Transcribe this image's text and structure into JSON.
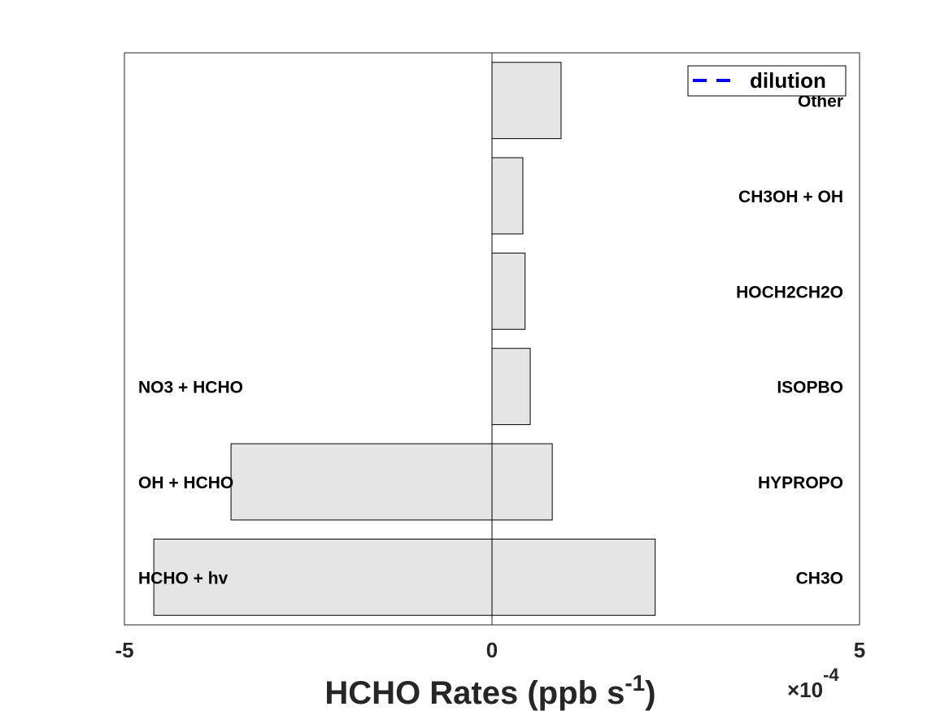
{
  "chart_data": {
    "type": "bar",
    "orientation": "horizontal",
    "xlabel": "HCHO Rates (ppb s",
    "xlabel_exponent": "-1",
    "xlabel_suffix": ")",
    "x_multiplier_label": "×10",
    "x_multiplier_exponent": "-4",
    "xlim": [
      -5,
      5
    ],
    "xticks": [
      -5,
      0,
      5
    ],
    "scale": 0.0001,
    "grid": false,
    "bar_color": "#e5e5e5",
    "edge_color": "#000000",
    "production": {
      "labels": [
        "CH3O",
        "HYPROPO",
        "ISOPBO",
        "HOCH2CH2O",
        "CH3OH + OH",
        "Other"
      ],
      "values": [
        2.22,
        0.82,
        0.52,
        0.45,
        0.42,
        0.94
      ]
    },
    "loss": {
      "labels": [
        "HCHO + hv",
        "OH + HCHO",
        "NO3 + HCHO"
      ],
      "values": [
        -4.6,
        -3.55,
        0
      ]
    },
    "legend": {
      "entries": [
        {
          "name": "dilution",
          "style": "dashed",
          "color": "#0000ff"
        }
      ],
      "location": "top-right"
    }
  }
}
